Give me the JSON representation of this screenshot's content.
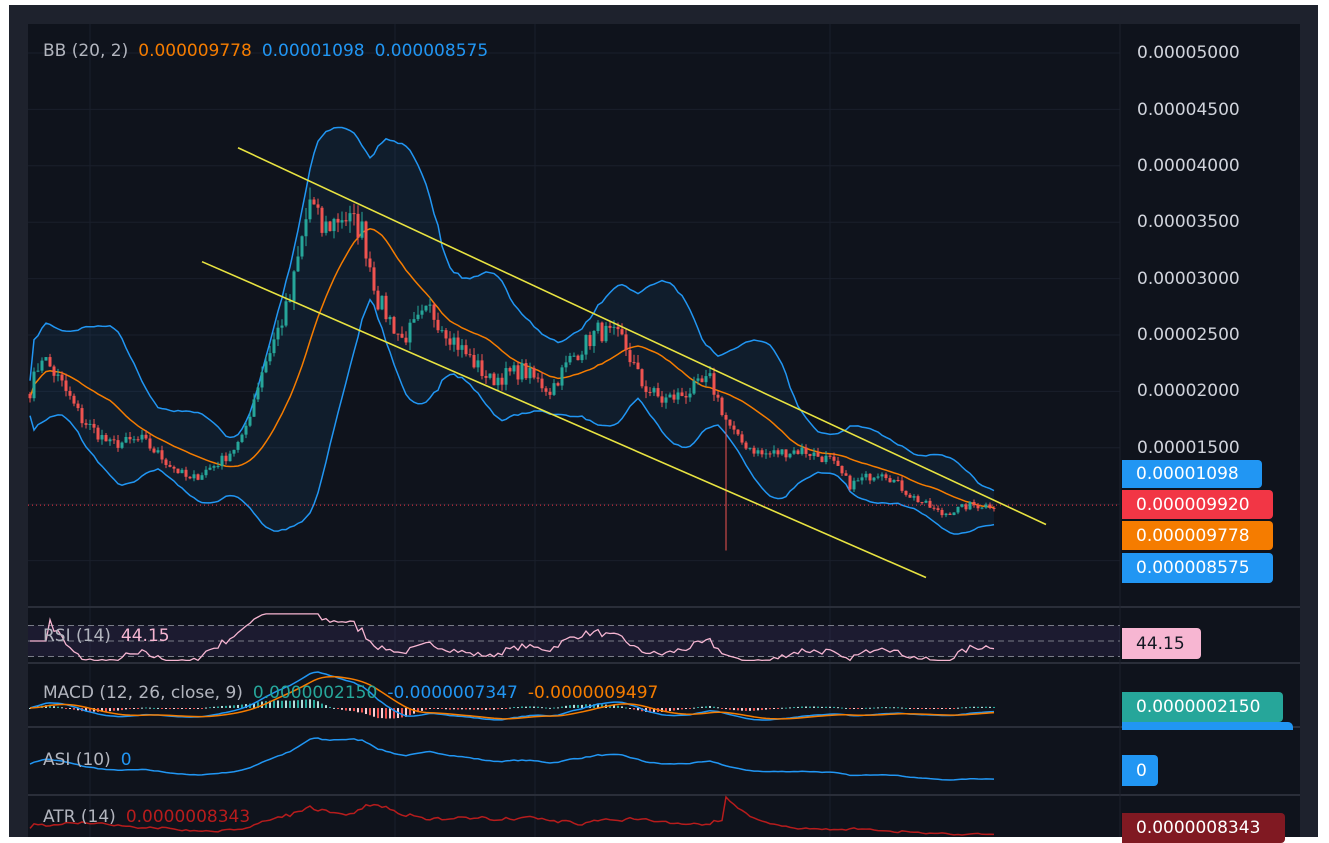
{
  "colors": {
    "up": "#26a69a",
    "down": "#ef5350",
    "bb_basis": "#f57c00",
    "bb_band": "#2196f3",
    "channel": "#e8e341",
    "rsi": "#f7b6d2",
    "macd": "#2196f3",
    "signal": "#f57c00",
    "asi": "#2196f3",
    "atr": "#b71c1c",
    "last_price": "#f23645"
  },
  "legend": {
    "bb": {
      "label": "BB (20, 2)",
      "basis": "0.000009778",
      "upper": "0.00001098",
      "lower": "0.000008575"
    },
    "rsi": {
      "label": "RSI (14)",
      "value": "44.15"
    },
    "macd": {
      "label": "MACD (12, 26, close, 9)",
      "hist": "0.0000002150",
      "macd": "-0.0000007347",
      "signal": "-0.0000009497"
    },
    "asi": {
      "label": "ASI (10)",
      "value": "0"
    },
    "atr": {
      "label": "ATR (14)",
      "value": "0.0000008343"
    }
  },
  "price_ticks": [
    "0.00005000",
    "0.00004500",
    "0.00004000",
    "0.00003500",
    "0.00003000",
    "0.00002500",
    "0.00002000",
    "0.00001500"
  ],
  "badges": {
    "bb_upper": "0.00001098",
    "last_price": "0.000009920",
    "bb_basis": "0.000009778",
    "bb_lower": "0.000008575",
    "rsi": "44.15",
    "macd_hist": "0.0000002150",
    "asi": "0",
    "atr": "0.0000008343"
  },
  "chart_data": {
    "type": "candlestick",
    "yaxis_range": [
      0.0,
      5e-05
    ],
    "grid": true,
    "key_closes": [
      [
        0,
        2.01e-05
      ],
      [
        3,
        2.32e-05
      ],
      [
        8,
        2.06e-05
      ],
      [
        13,
        1.75e-05
      ],
      [
        20,
        1.53e-05
      ],
      [
        28,
        1.57e-05
      ],
      [
        35,
        1.35e-05
      ],
      [
        40,
        1.21e-05
      ],
      [
        48,
        1.39e-05
      ],
      [
        53,
        1.57e-05
      ],
      [
        58,
        2.19e-05
      ],
      [
        65,
        2.81e-05
      ],
      [
        70,
        3.7e-05
      ],
      [
        73,
        3.43e-05
      ],
      [
        78,
        3.56e-05
      ],
      [
        83,
        3.43e-05
      ],
      [
        87,
        2.81e-05
      ],
      [
        93,
        2.46e-05
      ],
      [
        100,
        2.72e-05
      ],
      [
        108,
        2.37e-05
      ],
      [
        115,
        2.1e-05
      ],
      [
        123,
        2.19e-05
      ],
      [
        130,
        2.01e-05
      ],
      [
        135,
        2.28e-05
      ],
      [
        142,
        2.54e-05
      ],
      [
        148,
        2.46e-05
      ],
      [
        153,
        2.06e-05
      ],
      [
        158,
        1.92e-05
      ],
      [
        163,
        1.97e-05
      ],
      [
        170,
        2.1e-05
      ],
      [
        174,
        1.75e-05
      ],
      [
        177,
        1.57e-05
      ],
      [
        183,
        1.44e-05
      ],
      [
        193,
        1.48e-05
      ],
      [
        200,
        1.39e-05
      ],
      [
        205,
        1.17e-05
      ],
      [
        213,
        1.3e-05
      ],
      [
        220,
        1.08e-05
      ],
      [
        228,
        9.1e-06
      ],
      [
        235,
        9.9e-06
      ],
      [
        241,
        9.9e-06
      ]
    ],
    "spike": {
      "bar": 174,
      "low": 5.9e-06
    },
    "channel_lines": [
      {
        "from": [
          52,
          4.16e-05
        ],
        "to": [
          254,
          8.2e-06
        ]
      },
      {
        "from": [
          43,
          3.15e-05
        ],
        "to": [
          224,
          3.5e-06
        ]
      }
    ],
    "last_price": 9.92e-06,
    "rsi_levels": [
      70,
      50,
      30
    ]
  }
}
